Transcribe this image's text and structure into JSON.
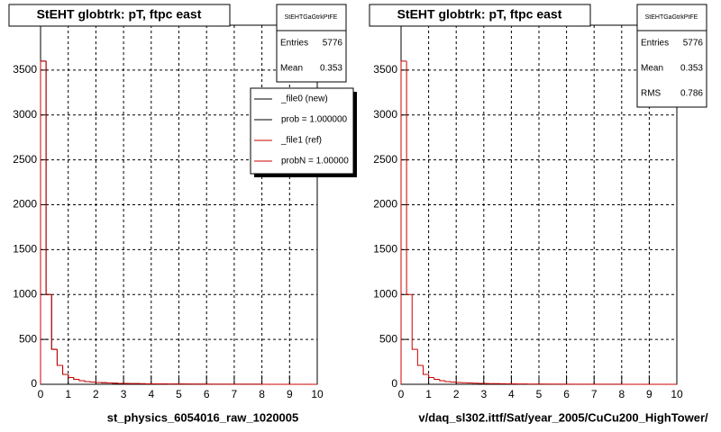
{
  "chart_data": [
    {
      "type": "histogram",
      "title": "StEHT globtrk: pT, ftpc east",
      "xlabel": "st_physics_6054016_raw_1020005",
      "bins": [
        0,
        0.2,
        0.4,
        0.6,
        0.8,
        1,
        1.2,
        1.4,
        1.6,
        1.8,
        2,
        2.2,
        2.4,
        2.6,
        2.8,
        3,
        3.2,
        3.4,
        3.6,
        3.8,
        4,
        4.2,
        4.4,
        4.6,
        4.8,
        5,
        5.2,
        5.4,
        5.6,
        5.8,
        6,
        6.2,
        6.4,
        6.6,
        6.8,
        7,
        7.2,
        7.4,
        7.6,
        7.8,
        8,
        8.2,
        8.4,
        8.6,
        8.8,
        9,
        9.2,
        9.4,
        9.6,
        9.8,
        10
      ],
      "series": [
        {
          "name": "_file0 (new)",
          "note": "prob = 1.000000",
          "color": "#000000",
          "values": [
            3600,
            1000,
            390,
            210,
            110,
            75,
            55,
            40,
            30,
            25,
            20,
            18,
            15,
            12,
            10,
            9,
            8,
            7,
            6,
            5,
            5,
            4,
            4,
            3,
            3,
            3,
            2,
            2,
            2,
            2,
            1,
            1,
            1,
            1,
            1,
            1,
            1,
            1,
            1,
            1,
            0,
            0,
            0,
            0,
            0,
            0,
            0,
            0,
            0,
            0
          ]
        },
        {
          "name": "_file1 (ref)",
          "note": "probN = 1.00000",
          "color": "#cc0000",
          "values": [
            3600,
            1000,
            390,
            210,
            110,
            75,
            55,
            40,
            30,
            25,
            20,
            18,
            15,
            12,
            10,
            9,
            8,
            7,
            6,
            5,
            5,
            4,
            4,
            3,
            3,
            3,
            2,
            2,
            2,
            2,
            1,
            1,
            1,
            1,
            1,
            1,
            1,
            1,
            1,
            1,
            0,
            0,
            0,
            0,
            0,
            0,
            0,
            0,
            0,
            0
          ]
        }
      ],
      "stats": {
        "title": "StEHTGaGtrkPtFE",
        "rows": [
          {
            "label": "Entries",
            "value": 5776
          },
          {
            "label": "Mean",
            "value": 0.353
          }
        ]
      },
      "xlim": [
        0,
        10
      ],
      "ylim": [
        0,
        4000
      ],
      "xticks": [
        0,
        1,
        2,
        3,
        4,
        5,
        6,
        7,
        8,
        9,
        10
      ],
      "yticks": [
        0,
        500,
        1000,
        1500,
        2000,
        2500,
        3000,
        3500
      ],
      "grid": true,
      "legend": true
    },
    {
      "type": "histogram",
      "title": "StEHT globtrk: pT, ftpc east",
      "xlabel": "v/daq_sl302.ittf/Sat/year_2005/CuCu200_HighTower/",
      "bins": [
        0,
        0.2,
        0.4,
        0.6,
        0.8,
        1,
        1.2,
        1.4,
        1.6,
        1.8,
        2,
        2.2,
        2.4,
        2.6,
        2.8,
        3,
        3.2,
        3.4,
        3.6,
        3.8,
        4,
        4.2,
        4.4,
        4.6,
        4.8,
        5,
        5.2,
        5.4,
        5.6,
        5.8,
        6,
        6.2,
        6.4,
        6.6,
        6.8,
        7,
        7.2,
        7.4,
        7.6,
        7.8,
        8,
        8.2,
        8.4,
        8.6,
        8.8,
        9,
        9.2,
        9.4,
        9.6,
        9.8,
        10
      ],
      "series": [
        {
          "color": "#cc0000",
          "values": [
            3600,
            1000,
            390,
            210,
            110,
            75,
            55,
            40,
            30,
            25,
            20,
            18,
            15,
            12,
            10,
            9,
            8,
            7,
            6,
            5,
            5,
            4,
            4,
            3,
            3,
            3,
            2,
            2,
            2,
            2,
            1,
            1,
            1,
            1,
            1,
            1,
            1,
            1,
            1,
            1,
            0,
            0,
            0,
            0,
            0,
            0,
            0,
            0,
            0,
            0
          ]
        }
      ],
      "stats": {
        "title": "StEHTGaGtrkPtFE",
        "rows": [
          {
            "label": "Entries",
            "value": 5776
          },
          {
            "label": "Mean",
            "value": 0.353
          },
          {
            "label": "RMS",
            "value": 0.786
          }
        ]
      },
      "xlim": [
        0,
        10
      ],
      "ylim": [
        0,
        4000
      ],
      "xticks": [
        0,
        1,
        2,
        3,
        4,
        5,
        6,
        7,
        8,
        9,
        10
      ],
      "yticks": [
        0,
        500,
        1000,
        1500,
        2000,
        2500,
        3000,
        3500
      ],
      "grid": true,
      "legend": false
    }
  ]
}
